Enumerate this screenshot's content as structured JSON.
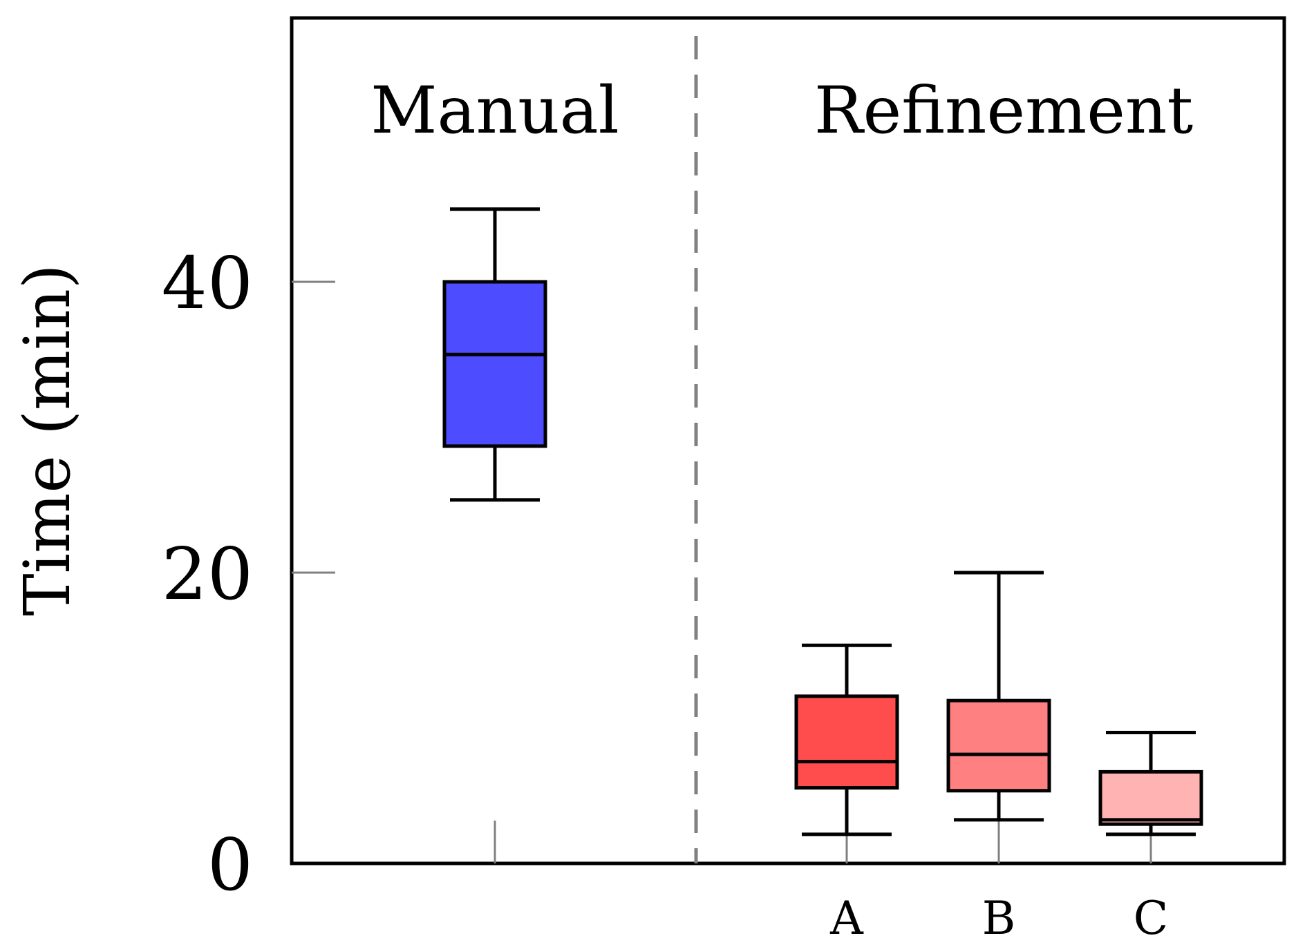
{
  "chart_data": {
    "type": "box",
    "ylabel": "Time (min)",
    "xlabel": "",
    "ylim": [
      0,
      58
    ],
    "yticks": [
      0,
      20,
      40
    ],
    "groups": [
      {
        "label": "Manual"
      },
      {
        "label": "Refinement"
      }
    ],
    "boxes": [
      {
        "group": "Manual",
        "category": "",
        "min": 25,
        "q1": 28.7,
        "median": 35,
        "q3": 40,
        "max": 45,
        "color": "#4d4dff"
      },
      {
        "group": "Refinement",
        "category": "A",
        "min": 2,
        "q1": 5.2,
        "median": 7,
        "q3": 11.5,
        "max": 15,
        "color": "#ff4d4d"
      },
      {
        "group": "Refinement",
        "category": "B",
        "min": 3,
        "q1": 5,
        "median": 7.5,
        "q3": 11.2,
        "max": 20,
        "color": "#ff8080"
      },
      {
        "group": "Refinement",
        "category": "C",
        "min": 2,
        "q1": 2.7,
        "median": 3,
        "q3": 6.3,
        "max": 9,
        "color": "#ffb3b3"
      }
    ],
    "separator": "dashed vertical line between groups",
    "grid": false
  }
}
